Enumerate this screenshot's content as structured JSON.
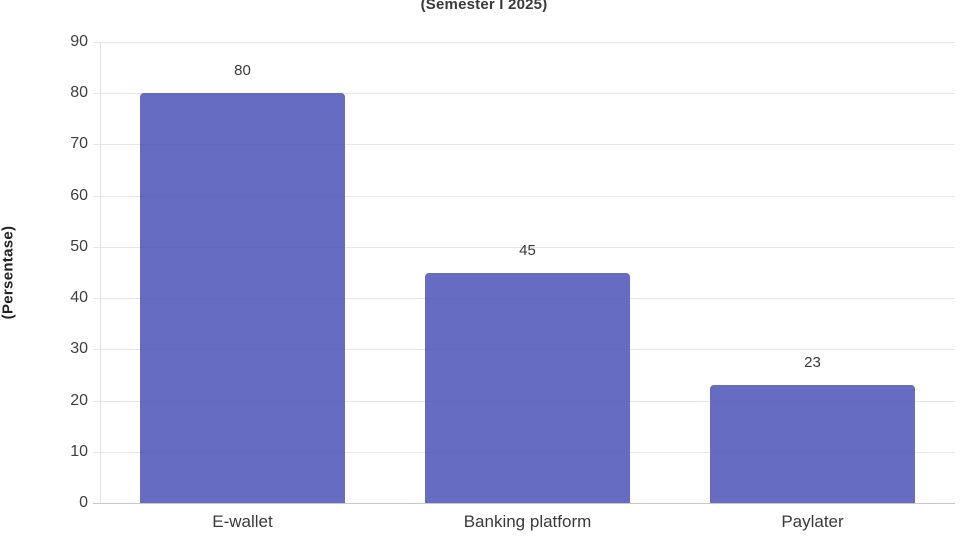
{
  "title": "(Semester I 2025)",
  "chart_data": {
    "type": "bar",
    "title": "(Semester I 2025)",
    "categories": [
      "E-wallet",
      "Banking platform",
      "Paylater"
    ],
    "values": [
      80,
      45,
      23
    ],
    "data_labels": [
      "80",
      "45",
      "23"
    ],
    "xlabel": "",
    "ylabel": "(Persentase)",
    "ylim": [
      0,
      90
    ],
    "ytick_step": 10,
    "ytick_labels": [
      "0",
      "10",
      "20",
      "30",
      "40",
      "50",
      "60",
      "70",
      "80",
      "90"
    ],
    "grid": true,
    "legend": "none",
    "colors": {
      "bar_fill_rgba": "rgba(74, 82, 182, 0.85)",
      "bar_fill_hex": "#656CC1",
      "gridline": "#e7e7e7",
      "axis_line": "#e2e2e2",
      "baseline": "#c9c9c9",
      "text": "#3a3a3a"
    }
  }
}
